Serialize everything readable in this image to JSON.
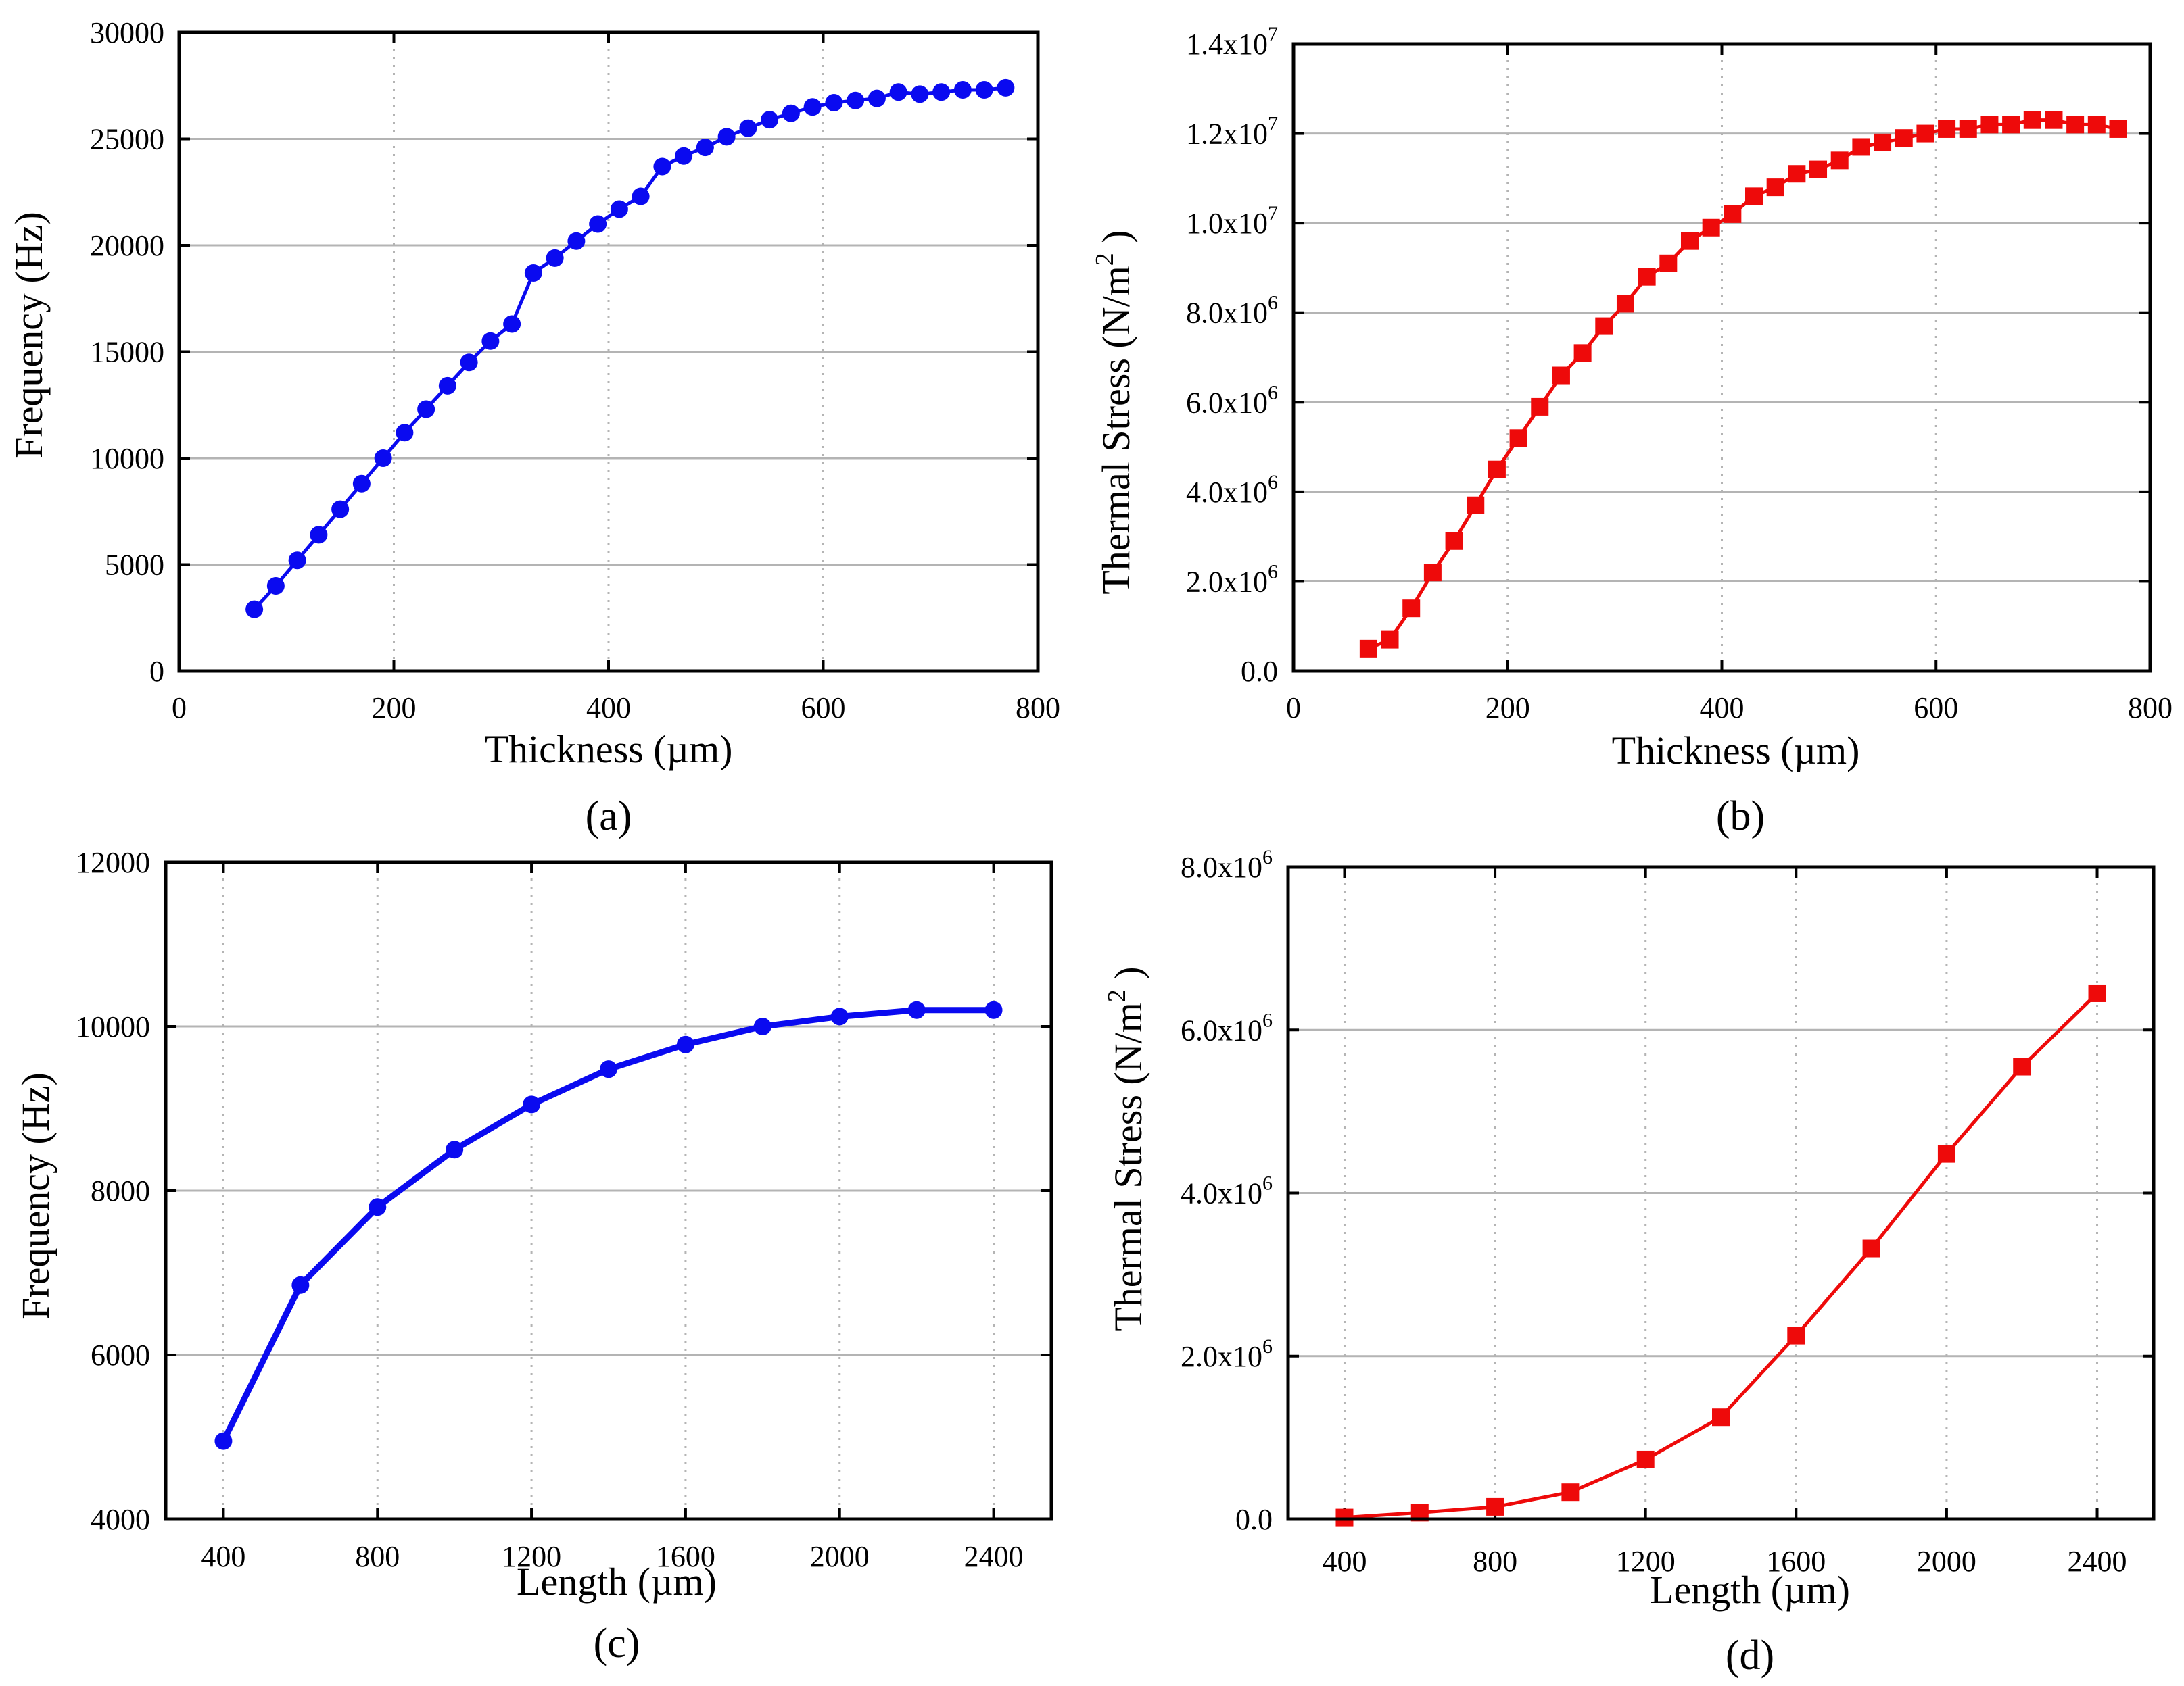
{
  "figure": {
    "panels": [
      "(a)",
      "(b)",
      "(c)",
      "(d)"
    ]
  },
  "colors": {
    "blue": "#0a0af0",
    "red": "#ee0a0a",
    "grid": "#b4b4b4"
  },
  "chart_data": [
    {
      "id": "a",
      "type": "line",
      "caption": "(a)",
      "xlabel": "Thickness (µm)",
      "ylabel": "Frequency (Hz)",
      "xlim": [
        0,
        800
      ],
      "ylim": [
        0,
        30000
      ],
      "xticks": [
        0,
        200,
        400,
        600,
        800
      ],
      "xtick_labels": [
        "0",
        "200",
        "400",
        "600",
        "800"
      ],
      "yticks": [
        0,
        5000,
        10000,
        15000,
        20000,
        25000,
        30000
      ],
      "ytick_labels": [
        "0",
        "5000",
        "10000",
        "15000",
        "20000",
        "25000",
        "30000"
      ],
      "hgrid": [
        5000,
        10000,
        15000,
        20000,
        25000
      ],
      "vgrid": [
        200,
        400,
        600
      ],
      "marker": "circle",
      "color": "#0a0af0",
      "series": [
        {
          "name": "Frequency",
          "x": [
            70,
            90,
            110,
            130,
            150,
            170,
            190,
            210,
            230,
            250,
            270,
            290,
            310,
            330,
            350,
            370,
            390,
            410,
            430,
            450,
            470,
            490,
            510,
            530,
            550,
            570,
            590,
            610,
            630,
            650,
            670,
            690,
            710,
            730,
            750,
            770
          ],
          "y": [
            2900,
            4000,
            5200,
            6400,
            7600,
            8800,
            10000,
            11200,
            12300,
            13400,
            14500,
            15500,
            16300,
            18700,
            19400,
            20200,
            21000,
            21700,
            22300,
            23700,
            24200,
            24600,
            25100,
            25500,
            25900,
            26200,
            26500,
            26700,
            26800,
            26900,
            27200,
            27100,
            27200,
            27300,
            27300,
            27400
          ]
        }
      ]
    },
    {
      "id": "b",
      "type": "line",
      "caption": "(b)",
      "xlabel": "Thickness (µm)",
      "ylabel_main": "Thermal Stress (N/m",
      "ylabel_sup": "2",
      "ylabel_end": " )",
      "xlim": [
        0,
        800
      ],
      "ylim": [
        0,
        14000000
      ],
      "xticks": [
        0,
        200,
        400,
        600,
        800
      ],
      "xtick_labels": [
        "0",
        "200",
        "400",
        "600",
        "800"
      ],
      "yticks": [
        0,
        2000000,
        4000000,
        6000000,
        8000000,
        10000000,
        12000000,
        14000000
      ],
      "ytick_labels": [
        {
          "m": "0.0",
          "e": ""
        },
        {
          "m": "2.0x10",
          "e": "6"
        },
        {
          "m": "4.0x10",
          "e": "6"
        },
        {
          "m": "6.0x10",
          "e": "6"
        },
        {
          "m": "8.0x10",
          "e": "6"
        },
        {
          "m": "1.0x10",
          "e": "7"
        },
        {
          "m": "1.2x10",
          "e": "7"
        },
        {
          "m": "1.4x10",
          "e": "7"
        }
      ],
      "hgrid": [
        2000000,
        4000000,
        6000000,
        8000000,
        10000000,
        12000000
      ],
      "vgrid": [
        200,
        400,
        600
      ],
      "marker": "square",
      "color": "#ee0a0a",
      "series": [
        {
          "name": "Thermal Stress",
          "x": [
            70,
            90,
            110,
            130,
            150,
            170,
            190,
            210,
            230,
            250,
            270,
            290,
            310,
            330,
            350,
            370,
            390,
            410,
            430,
            450,
            470,
            490,
            510,
            530,
            550,
            570,
            590,
            610,
            630,
            650,
            670,
            690,
            710,
            730,
            750,
            770
          ],
          "y": [
            500000,
            700000,
            1400000,
            2200000,
            2900000,
            3700000,
            4500000,
            5200000,
            5900000,
            6600000,
            7100000,
            7700000,
            8200000,
            8800000,
            9100000,
            9600000,
            9900000,
            10200000,
            10600000,
            10800000,
            11100000,
            11200000,
            11400000,
            11700000,
            11800000,
            11900000,
            12000000,
            12100000,
            12100000,
            12200000,
            12200000,
            12300000,
            12300000,
            12200000,
            12200000,
            12100000
          ]
        }
      ]
    },
    {
      "id": "c",
      "type": "line",
      "caption": "(c)",
      "xlabel": "Length  (µm)",
      "ylabel": "Frequency (Hz)",
      "xlim": [
        250,
        2550
      ],
      "ylim": [
        4000,
        12000
      ],
      "xticks": [
        400,
        800,
        1200,
        1600,
        2000,
        2400
      ],
      "xtick_labels": [
        "400",
        "800",
        "1200",
        "1600",
        "2000",
        "2400"
      ],
      "yticks": [
        4000,
        6000,
        8000,
        10000,
        12000
      ],
      "ytick_labels": [
        "4000",
        "6000",
        "8000",
        "10000",
        "12000"
      ],
      "hgrid": [
        6000,
        8000,
        10000
      ],
      "vgrid": [
        400,
        800,
        1200,
        1600,
        2000,
        2400
      ],
      "marker": "circle",
      "color": "#0a0af0",
      "series": [
        {
          "name": "Frequency",
          "x": [
            400,
            600,
            800,
            1000,
            1200,
            1400,
            1600,
            1800,
            2000,
            2200,
            2400
          ],
          "y": [
            4950,
            6850,
            7800,
            8500,
            9050,
            9480,
            9780,
            10000,
            10120,
            10200,
            10200
          ]
        }
      ]
    },
    {
      "id": "d",
      "type": "line",
      "caption": "(d)",
      "xlabel": "Length  (µm)",
      "ylabel_main": "Thermal Stress (N/m",
      "ylabel_sup": "2",
      "ylabel_end": " )",
      "xlim": [
        250,
        2550
      ],
      "ylim": [
        0,
        8000000
      ],
      "xticks": [
        400,
        800,
        1200,
        1600,
        2000,
        2400
      ],
      "xtick_labels": [
        "400",
        "800",
        "1200",
        "1600",
        "2000",
        "2400"
      ],
      "yticks": [
        0,
        2000000,
        4000000,
        6000000,
        8000000
      ],
      "ytick_labels": [
        {
          "m": "0.0",
          "e": ""
        },
        {
          "m": "2.0x10",
          "e": "6"
        },
        {
          "m": "4.0x10",
          "e": "6"
        },
        {
          "m": "6.0x10",
          "e": "6"
        },
        {
          "m": "8.0x10",
          "e": "6"
        }
      ],
      "hgrid": [
        2000000,
        4000000,
        6000000
      ],
      "vgrid": [
        400,
        800,
        1200,
        1600,
        2000,
        2400
      ],
      "marker": "square",
      "color": "#ee0a0a",
      "series": [
        {
          "name": "Thermal Stress",
          "x": [
            400,
            600,
            800,
            1000,
            1200,
            1400,
            1600,
            1800,
            2000,
            2200,
            2400
          ],
          "y": [
            20000,
            80000,
            150000,
            330000,
            730000,
            1250000,
            2250000,
            3320000,
            4480000,
            5550000,
            6450000
          ]
        }
      ]
    }
  ]
}
